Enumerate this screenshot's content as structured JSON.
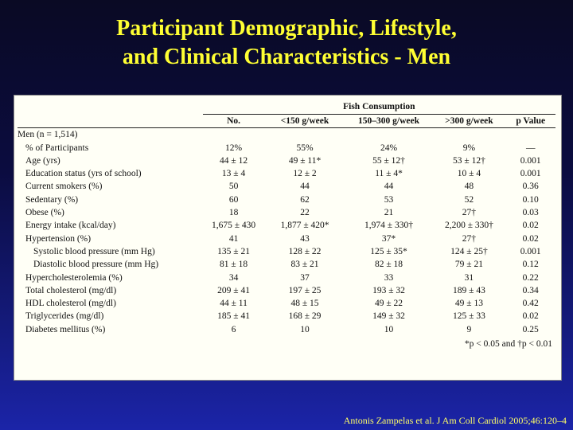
{
  "title": {
    "line1": "Participant Demographic, Lifestyle,",
    "line2": "and Clinical Characteristics - Men"
  },
  "table": {
    "group_header": "Fish Consumption",
    "columns": [
      "No.",
      "<150 g/week",
      "150–300 g/week",
      ">300 g/week",
      "p Value"
    ],
    "section_label": "Men (n = 1,514)",
    "rows": [
      {
        "label": "% of Participants",
        "indent": 1,
        "values": [
          "12%",
          "55%",
          "24%",
          "9%",
          "—"
        ]
      },
      {
        "label": "Age (yrs)",
        "indent": 1,
        "values": [
          "44 ± 12",
          "49 ± 11*",
          "55 ± 12†",
          "53 ± 12†",
          "0.001"
        ]
      },
      {
        "label": "Education status (yrs of school)",
        "indent": 1,
        "values": [
          "13 ± 4",
          "12 ± 2",
          "11 ± 4*",
          "10 ± 4",
          "0.001"
        ]
      },
      {
        "label": "Current smokers (%)",
        "indent": 1,
        "values": [
          "50",
          "44",
          "44",
          "48",
          "0.36"
        ]
      },
      {
        "label": "Sedentary (%)",
        "indent": 1,
        "values": [
          "60",
          "62",
          "53",
          "52",
          "0.10"
        ]
      },
      {
        "label": "Obese (%)",
        "indent": 1,
        "values": [
          "18",
          "22",
          "21",
          "27†",
          "0.03"
        ]
      },
      {
        "label": "Energy intake (kcal/day)",
        "indent": 1,
        "values": [
          "1,675 ± 430",
          "1,877 ± 420*",
          "1,974 ± 330†",
          "2,200 ± 330†",
          "0.02"
        ]
      },
      {
        "label": "Hypertension (%)",
        "indent": 1,
        "values": [
          "41",
          "43",
          "37*",
          "27†",
          "0.02"
        ]
      },
      {
        "label": "Systolic blood pressure (mm Hg)",
        "indent": 2,
        "values": [
          "135 ± 21",
          "128 ± 22",
          "125 ± 35*",
          "124 ± 25†",
          "0.001"
        ]
      },
      {
        "label": "Diastolic blood pressure (mm Hg)",
        "indent": 2,
        "values": [
          "81 ± 18",
          "83 ± 21",
          "82 ± 18",
          "79 ± 21",
          "0.12"
        ]
      },
      {
        "label": "Hypercholesterolemia (%)",
        "indent": 1,
        "values": [
          "34",
          "37",
          "33",
          "31",
          "0.22"
        ]
      },
      {
        "label": "Total cholesterol (mg/dl)",
        "indent": 1,
        "values": [
          "209 ± 41",
          "197 ± 25",
          "193 ± 32",
          "189 ± 43",
          "0.34"
        ]
      },
      {
        "label": "HDL cholesterol (mg/dl)",
        "indent": 1,
        "values": [
          "44 ± 11",
          "48 ± 15",
          "49 ± 22",
          "49 ± 13",
          "0.42"
        ]
      },
      {
        "label": "Triglycerides (mg/dl)",
        "indent": 1,
        "values": [
          "185 ± 41",
          "168 ± 29",
          "149 ± 32",
          "125 ± 33",
          "0.02"
        ]
      },
      {
        "label": "Diabetes mellitus (%)",
        "indent": 1,
        "values": [
          "6",
          "10",
          "10",
          "9",
          "0.25"
        ]
      }
    ],
    "footnote": "*p < 0.05 and †p < 0.01"
  },
  "citation": "Antonis Zampelas et al. J Am Coll Cardiol 2005;46:120–4",
  "colors": {
    "title": "#ffff33",
    "background_top": "#0a0a24",
    "background_bottom": "#1b24a8",
    "panel": "#fffff6"
  }
}
